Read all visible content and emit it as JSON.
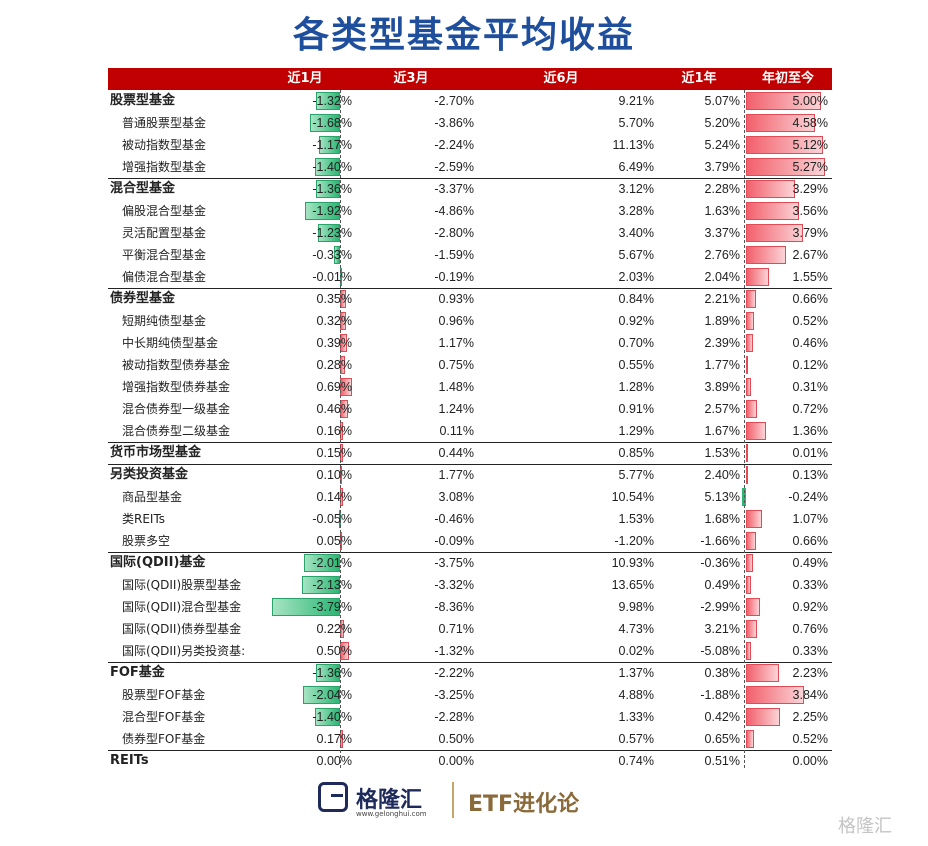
{
  "title": "各类型基金平均收益",
  "columns": [
    "",
    "近1月",
    "近3月",
    "近6月",
    "近1年",
    "年初至今"
  ],
  "logo": {
    "name": "格隆汇",
    "url": "www.gelonghui.com",
    "etf": "ETF进化论"
  },
  "watermark": "格隆汇",
  "colors": {
    "header": "#c00000",
    "title": "#1f4e9c",
    "positive_bar": "#f2606c",
    "negative_bar": "#2bb673"
  },
  "chart_data": {
    "type": "table",
    "title": "各类型基金平均收益",
    "columns": [
      "近1月",
      "近3月",
      "近6月",
      "近1年",
      "年初至今"
    ],
    "rows": [
      {
        "name": "股票型基金",
        "level": "category",
        "m1": -1.32,
        "m3": -2.7,
        "m6": 9.21,
        "y1": 5.07,
        "ytd": 5.0,
        "m1_text": "-1.32%",
        "m3_text": "-2.70%",
        "m6_text": "9.21%",
        "y1_text": "5.07%",
        "ytd_text": "5.00%"
      },
      {
        "name": "普通股票型基金",
        "level": "sub",
        "m1": -1.68,
        "m3": -3.86,
        "m6": 5.7,
        "y1": 5.2,
        "ytd": 4.58,
        "m1_text": "-1.68%",
        "m3_text": "-3.86%",
        "m6_text": "5.70%",
        "y1_text": "5.20%",
        "ytd_text": "4.58%"
      },
      {
        "name": "被动指数型基金",
        "level": "sub",
        "m1": -1.17,
        "m3": -2.24,
        "m6": 11.13,
        "y1": 5.24,
        "ytd": 5.12,
        "m1_text": "-1.17%",
        "m3_text": "-2.24%",
        "m6_text": "11.13%",
        "y1_text": "5.24%",
        "ytd_text": "5.12%"
      },
      {
        "name": "增强指数型基金",
        "level": "sub",
        "m1": -1.4,
        "m3": -2.59,
        "m6": 6.49,
        "y1": 3.79,
        "ytd": 5.27,
        "m1_text": "-1.40%",
        "m3_text": "-2.59%",
        "m6_text": "6.49%",
        "y1_text": "3.79%",
        "ytd_text": "5.27%"
      },
      {
        "name": "混合型基金",
        "level": "category",
        "m1": -1.36,
        "m3": -3.37,
        "m6": 3.12,
        "y1": 2.28,
        "ytd": 3.29,
        "m1_text": "-1.36%",
        "m3_text": "-3.37%",
        "m6_text": "3.12%",
        "y1_text": "2.28%",
        "ytd_text": "3.29%"
      },
      {
        "name": "偏股混合型基金",
        "level": "sub",
        "m1": -1.92,
        "m3": -4.86,
        "m6": 3.28,
        "y1": 1.63,
        "ytd": 3.56,
        "m1_text": "-1.92%",
        "m3_text": "-4.86%",
        "m6_text": "3.28%",
        "y1_text": "1.63%",
        "ytd_text": "3.56%"
      },
      {
        "name": "灵活配置型基金",
        "level": "sub",
        "m1": -1.23,
        "m3": -2.8,
        "m6": 3.4,
        "y1": 3.37,
        "ytd": 3.79,
        "m1_text": "-1.23%",
        "m3_text": "-2.80%",
        "m6_text": "3.40%",
        "y1_text": "3.37%",
        "ytd_text": "3.79%"
      },
      {
        "name": "平衡混合型基金",
        "level": "sub",
        "m1": -0.33,
        "m3": -1.59,
        "m6": 5.67,
        "y1": 2.76,
        "ytd": 2.67,
        "m1_text": "-0.33%",
        "m3_text": "-1.59%",
        "m6_text": "5.67%",
        "y1_text": "2.76%",
        "ytd_text": "2.67%"
      },
      {
        "name": "偏债混合型基金",
        "level": "sub",
        "m1": -0.01,
        "m3": -0.19,
        "m6": 2.03,
        "y1": 2.04,
        "ytd": 1.55,
        "m1_text": "-0.01%",
        "m3_text": "-0.19%",
        "m6_text": "2.03%",
        "y1_text": "2.04%",
        "ytd_text": "1.55%"
      },
      {
        "name": "债券型基金",
        "level": "category",
        "m1": 0.35,
        "m3": 0.93,
        "m6": 0.84,
        "y1": 2.21,
        "ytd": 0.66,
        "m1_text": "0.35%",
        "m3_text": "0.93%",
        "m6_text": "0.84%",
        "y1_text": "2.21%",
        "ytd_text": "0.66%"
      },
      {
        "name": "短期纯债型基金",
        "level": "sub",
        "m1": 0.32,
        "m3": 0.96,
        "m6": 0.92,
        "y1": 1.89,
        "ytd": 0.52,
        "m1_text": "0.32%",
        "m3_text": "0.96%",
        "m6_text": "0.92%",
        "y1_text": "1.89%",
        "ytd_text": "0.52%"
      },
      {
        "name": "中长期纯债型基金",
        "level": "sub",
        "m1": 0.39,
        "m3": 1.17,
        "m6": 0.7,
        "y1": 2.39,
        "ytd": 0.46,
        "m1_text": "0.39%",
        "m3_text": "1.17%",
        "m6_text": "0.70%",
        "y1_text": "2.39%",
        "ytd_text": "0.46%"
      },
      {
        "name": "被动指数型债券基金",
        "level": "sub",
        "m1": 0.28,
        "m3": 0.75,
        "m6": 0.55,
        "y1": 1.77,
        "ytd": 0.12,
        "m1_text": "0.28%",
        "m3_text": "0.75%",
        "m6_text": "0.55%",
        "y1_text": "1.77%",
        "ytd_text": "0.12%"
      },
      {
        "name": "增强指数型债券基金",
        "level": "sub",
        "m1": 0.69,
        "m3": 1.48,
        "m6": 1.28,
        "y1": 3.89,
        "ytd": 0.31,
        "m1_text": "0.69%",
        "m3_text": "1.48%",
        "m6_text": "1.28%",
        "y1_text": "3.89%",
        "ytd_text": "0.31%"
      },
      {
        "name": "混合债券型一级基金",
        "level": "sub",
        "m1": 0.46,
        "m3": 1.24,
        "m6": 0.91,
        "y1": 2.57,
        "ytd": 0.72,
        "m1_text": "0.46%",
        "m3_text": "1.24%",
        "m6_text": "0.91%",
        "y1_text": "2.57%",
        "ytd_text": "0.72%"
      },
      {
        "name": "混合债券型二级基金",
        "level": "sub",
        "m1": 0.16,
        "m3": 0.11,
        "m6": 1.29,
        "y1": 1.67,
        "ytd": 1.36,
        "m1_text": "0.16%",
        "m3_text": "0.11%",
        "m6_text": "1.29%",
        "y1_text": "1.67%",
        "ytd_text": "1.36%"
      },
      {
        "name": "货币市场型基金",
        "level": "category",
        "m1": 0.15,
        "m3": 0.44,
        "m6": 0.85,
        "y1": 1.53,
        "ytd": 0.01,
        "m1_text": "0.15%",
        "m3_text": "0.44%",
        "m6_text": "0.85%",
        "y1_text": "1.53%",
        "ytd_text": "0.01%"
      },
      {
        "name": "另类投资基金",
        "level": "category",
        "m1": 0.1,
        "m3": 1.77,
        "m6": 5.77,
        "y1": 2.4,
        "ytd": 0.13,
        "m1_text": "0.10%",
        "m3_text": "1.77%",
        "m6_text": "5.77%",
        "y1_text": "2.40%",
        "ytd_text": "0.13%"
      },
      {
        "name": "商品型基金",
        "level": "sub",
        "m1": 0.14,
        "m3": 3.08,
        "m6": 10.54,
        "y1": 5.13,
        "ytd": -0.24,
        "m1_text": "0.14%",
        "m3_text": "3.08%",
        "m6_text": "10.54%",
        "y1_text": "5.13%",
        "ytd_text": "-0.24%"
      },
      {
        "name": "类REITs",
        "level": "sub",
        "m1": -0.05,
        "m3": -0.46,
        "m6": 1.53,
        "y1": 1.68,
        "ytd": 1.07,
        "m1_text": "-0.05%",
        "m3_text": "-0.46%",
        "m6_text": "1.53%",
        "y1_text": "1.68%",
        "ytd_text": "1.07%"
      },
      {
        "name": "股票多空",
        "level": "sub",
        "m1": 0.05,
        "m3": -0.09,
        "m6": -1.2,
        "y1": -1.66,
        "ytd": 0.66,
        "m1_text": "0.05%",
        "m3_text": "-0.09%",
        "m6_text": "-1.20%",
        "y1_text": "-1.66%",
        "ytd_text": "0.66%"
      },
      {
        "name": "国际(QDII)基金",
        "level": "category",
        "m1": -2.01,
        "m3": -3.75,
        "m6": 10.93,
        "y1": -0.36,
        "ytd": 0.49,
        "m1_text": "-2.01%",
        "m3_text": "-3.75%",
        "m6_text": "10.93%",
        "y1_text": "-0.36%",
        "ytd_text": "0.49%"
      },
      {
        "name": "国际(QDII)股票型基金",
        "level": "sub",
        "m1": -2.13,
        "m3": -3.32,
        "m6": 13.65,
        "y1": 0.49,
        "ytd": 0.33,
        "m1_text": "-2.13%",
        "m3_text": "-3.32%",
        "m6_text": "13.65%",
        "y1_text": "0.49%",
        "ytd_text": "0.33%"
      },
      {
        "name": "国际(QDII)混合型基金",
        "level": "sub",
        "m1": -3.79,
        "m3": -8.36,
        "m6": 9.98,
        "y1": -2.99,
        "ytd": 0.92,
        "m1_text": "-3.79%",
        "m3_text": "-8.36%",
        "m6_text": "9.98%",
        "y1_text": "-2.99%",
        "ytd_text": "0.92%"
      },
      {
        "name": "国际(QDII)债券型基金",
        "level": "sub",
        "m1": 0.22,
        "m3": 0.71,
        "m6": 4.73,
        "y1": 3.21,
        "ytd": 0.76,
        "m1_text": "0.22%",
        "m3_text": "0.71%",
        "m6_text": "4.73%",
        "y1_text": "3.21%",
        "ytd_text": "0.76%"
      },
      {
        "name": "国际(QDII)另类投资基:",
        "level": "sub",
        "m1": 0.5,
        "m3": -1.32,
        "m6": 0.02,
        "y1": -5.08,
        "ytd": 0.33,
        "m1_text": "0.50%",
        "m3_text": "-1.32%",
        "m6_text": "0.02%",
        "y1_text": "-5.08%",
        "ytd_text": "0.33%"
      },
      {
        "name": "FOF基金",
        "level": "category",
        "m1": -1.36,
        "m3": -2.22,
        "m6": 1.37,
        "y1": 0.38,
        "ytd": 2.23,
        "m1_text": "-1.36%",
        "m3_text": "-2.22%",
        "m6_text": "1.37%",
        "y1_text": "0.38%",
        "ytd_text": "2.23%"
      },
      {
        "name": "股票型FOF基金",
        "level": "sub",
        "m1": -2.04,
        "m3": -3.25,
        "m6": 4.88,
        "y1": -1.88,
        "ytd": 3.84,
        "m1_text": "-2.04%",
        "m3_text": "-3.25%",
        "m6_text": "4.88%",
        "y1_text": "-1.88%",
        "ytd_text": "3.84%"
      },
      {
        "name": "混合型FOF基金",
        "level": "sub",
        "m1": -1.4,
        "m3": -2.28,
        "m6": 1.33,
        "y1": 0.42,
        "ytd": 2.25,
        "m1_text": "-1.40%",
        "m3_text": "-2.28%",
        "m6_text": "1.33%",
        "y1_text": "0.42%",
        "ytd_text": "2.25%"
      },
      {
        "name": "债券型FOF基金",
        "level": "sub",
        "m1": 0.17,
        "m3": 0.5,
        "m6": 0.57,
        "y1": 0.65,
        "ytd": 0.52,
        "m1_text": "0.17%",
        "m3_text": "0.50%",
        "m6_text": "0.57%",
        "y1_text": "0.65%",
        "ytd_text": "0.52%"
      },
      {
        "name": "REITs",
        "level": "category",
        "m1": 0.0,
        "m3": 0.0,
        "m6": 0.74,
        "y1": 0.51,
        "ytd": 0.0,
        "m1_text": "0.00%",
        "m3_text": "0.00%",
        "m6_text": "0.74%",
        "y1_text": "0.51%",
        "ytd_text": "0.00%"
      }
    ],
    "group_separators_after": [
      3,
      8,
      15,
      16,
      20,
      25,
      29
    ]
  }
}
